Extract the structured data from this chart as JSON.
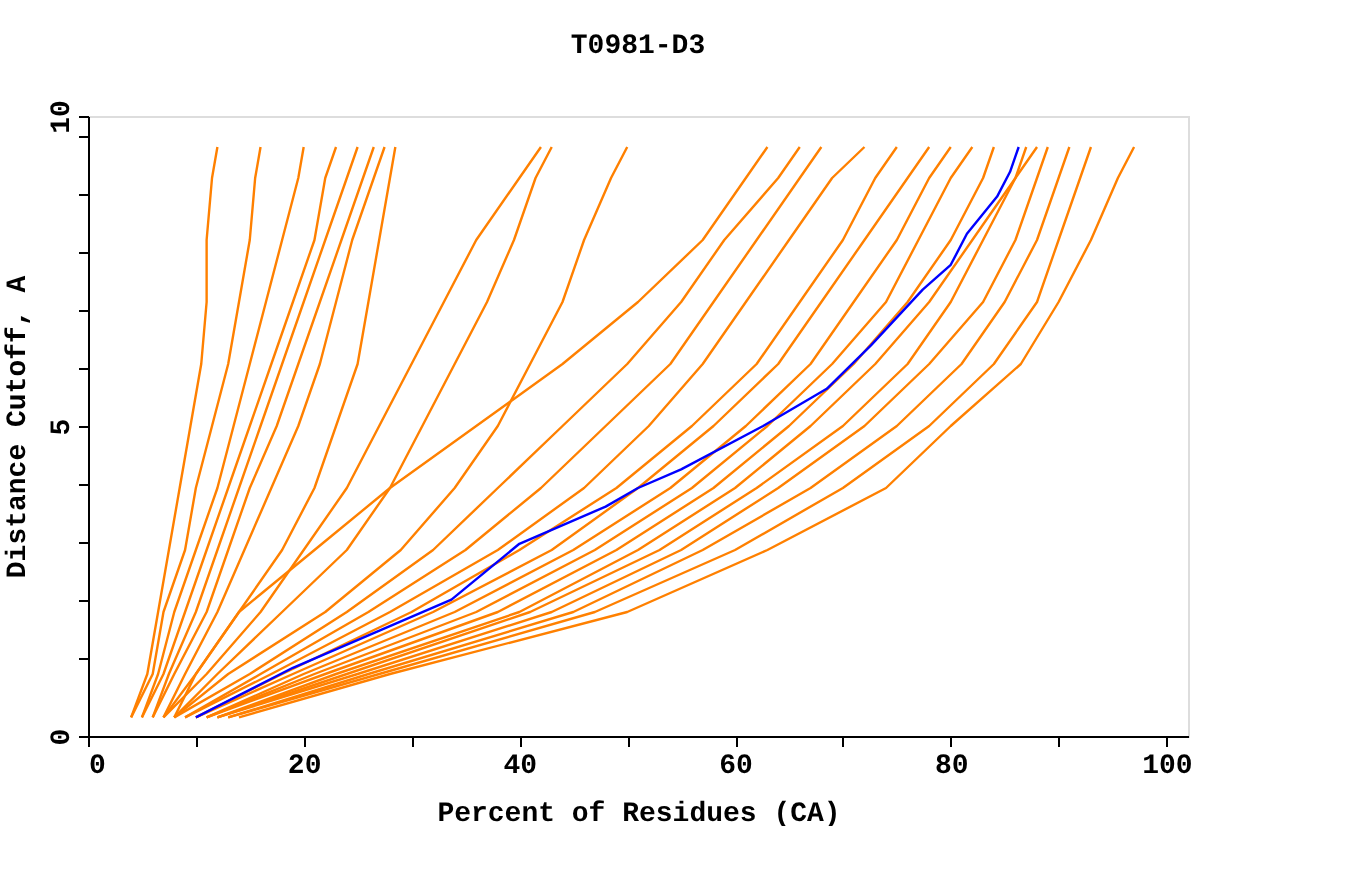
{
  "chart_data": {
    "type": "line",
    "title": "T0981-D3",
    "xlabel": "Percent of Residues (CA)",
    "ylabel": "Distance Cutoff, A",
    "xlim": [
      0,
      102
    ],
    "ylim": [
      0,
      10
    ],
    "xticks": [
      0,
      {
        "value": 10,
        "label": null
      },
      20,
      {
        "value": 30,
        "label": null
      },
      40,
      {
        "value": 50,
        "label": null
      },
      60,
      {
        "value": 70,
        "label": null
      },
      80,
      {
        "value": 90,
        "label": null
      },
      100
    ],
    "yticks": [
      0,
      {
        "value": 1.26,
        "label": null
      },
      {
        "value": 2.19,
        "label": null
      },
      {
        "value": 3.13,
        "label": null
      },
      {
        "value": 4.06,
        "label": null
      },
      5,
      {
        "value": 5.94,
        "label": null
      },
      {
        "value": 6.87,
        "label": null
      },
      {
        "value": 7.81,
        "label": null
      },
      {
        "value": 8.74,
        "label": null
      },
      {
        "value": 9.68,
        "label": null
      },
      10
    ],
    "grid": false,
    "legend": false,
    "series": [
      {
        "color": "#ff8000",
        "x": [
          4,
          5.5,
          6.5,
          7.5,
          8.5,
          9.5,
          10.5,
          11,
          11,
          11.5,
          12
        ],
        "values": [
          0.3,
          1,
          2,
          3,
          4,
          5,
          6,
          7,
          8,
          9,
          9.5
        ]
      },
      {
        "color": "#ff8000",
        "x": [
          4,
          6,
          7,
          9,
          10,
          11.5,
          13,
          14,
          15,
          15.5,
          16
        ],
        "values": [
          0.3,
          1,
          2,
          3,
          4,
          5,
          6,
          7,
          8,
          9,
          9.5
        ]
      },
      {
        "color": "#ff8000",
        "x": [
          5,
          6.5,
          8,
          10,
          12,
          13.5,
          15,
          16.5,
          18,
          19.5,
          20
        ],
        "values": [
          0.3,
          1,
          2,
          3,
          4,
          5,
          6,
          7,
          8,
          9,
          9.5
        ]
      },
      {
        "color": "#ff8000",
        "x": [
          5,
          7,
          9,
          11,
          13,
          15,
          17,
          19,
          21,
          22,
          23
        ],
        "values": [
          0.3,
          1,
          2,
          3,
          4,
          5,
          6,
          7,
          8,
          9,
          9.5
        ]
      },
      {
        "color": "#ff8000",
        "x": [
          6,
          7.5,
          10,
          12,
          14,
          16,
          18,
          20,
          22,
          24,
          25
        ],
        "values": [
          0.3,
          1,
          2,
          3,
          4,
          5,
          6,
          7,
          8,
          9,
          9.5
        ]
      },
      {
        "color": "#ff8000",
        "x": [
          6,
          8,
          11,
          13,
          15,
          17.5,
          19.5,
          21.5,
          23.5,
          25.5,
          26.5
        ],
        "values": [
          0.3,
          1,
          2,
          3,
          4,
          5,
          6,
          7,
          8,
          9,
          9.5
        ]
      },
      {
        "color": "#ff8000",
        "x": [
          7,
          9,
          12,
          14.5,
          17,
          19.5,
          21.5,
          23,
          24.5,
          26.5,
          27.5
        ],
        "values": [
          0.3,
          1,
          2,
          3,
          4,
          5,
          6,
          7,
          8,
          9,
          9.5
        ]
      },
      {
        "color": "#ff8000",
        "x": [
          7,
          10,
          14,
          18,
          21,
          23,
          25,
          26,
          27,
          28,
          28.5
        ],
        "values": [
          0.3,
          1,
          2,
          3,
          4,
          5,
          6,
          7,
          8,
          9,
          9.5
        ]
      },
      {
        "color": "#ff8000",
        "x": [
          7,
          11,
          16,
          20,
          24,
          27,
          30,
          33,
          36,
          40,
          42
        ],
        "values": [
          0.3,
          1,
          2,
          3,
          4,
          5,
          6,
          7,
          8,
          9,
          9.5
        ]
      },
      {
        "color": "#ff8000",
        "x": [
          8,
          12,
          18,
          24,
          28,
          31,
          34,
          37,
          39.5,
          41.5,
          43
        ],
        "values": [
          0.3,
          1,
          2,
          3,
          4,
          5,
          6,
          7,
          8,
          9,
          9.5
        ]
      },
      {
        "color": "#ff8000",
        "x": [
          8,
          13,
          22,
          29,
          34,
          38,
          41,
          44,
          46,
          48.5,
          50
        ],
        "values": [
          0.3,
          1,
          2,
          3,
          4,
          5,
          6,
          7,
          8,
          9,
          9.5
        ]
      },
      {
        "color": "#ff8000",
        "x": [
          8,
          10,
          14,
          21,
          28,
          36,
          44,
          51,
          57,
          61,
          63
        ],
        "values": [
          0.3,
          1,
          2,
          3,
          4,
          5,
          6,
          7,
          8,
          9,
          9.5
        ]
      },
      {
        "color": "#ff8000",
        "x": [
          8,
          15,
          24,
          32,
          38,
          44,
          50,
          55,
          59,
          64,
          66
        ],
        "values": [
          0.3,
          1,
          2,
          3,
          4,
          5,
          6,
          7,
          8,
          9,
          9.5
        ]
      },
      {
        "color": "#ff8000",
        "x": [
          9,
          16,
          26,
          35,
          42,
          48,
          54,
          58,
          62,
          66,
          68
        ],
        "values": [
          0.3,
          1,
          2,
          3,
          4,
          5,
          6,
          7,
          8,
          9,
          9.5
        ]
      },
      {
        "color": "#ff8000",
        "x": [
          9,
          17,
          28,
          38,
          46,
          52,
          57,
          61,
          65,
          69,
          72
        ],
        "values": [
          0.3,
          1,
          2,
          3,
          4,
          5,
          6,
          7,
          8,
          9,
          9.5
        ]
      },
      {
        "color": "#ff8000",
        "x": [
          10,
          18,
          30,
          40,
          49,
          56,
          62,
          66,
          70,
          73,
          75
        ],
        "values": [
          0.3,
          1,
          2,
          3,
          4,
          5,
          6,
          7,
          8,
          9,
          9.5
        ]
      },
      {
        "color": "#ff8000",
        "x": [
          10,
          19,
          32,
          43,
          51,
          58,
          64,
          68,
          72,
          76,
          78
        ],
        "values": [
          0.3,
          1,
          2,
          3,
          4,
          5,
          6,
          7,
          8,
          9,
          9.5
        ]
      },
      {
        "color": "#ff8000",
        "x": [
          11,
          20,
          34,
          45,
          54,
          61,
          67,
          71,
          75,
          78,
          80
        ],
        "values": [
          0.3,
          1,
          2,
          3,
          4,
          5,
          6,
          7,
          8,
          9,
          9.5
        ]
      },
      {
        "color": "#ff8000",
        "x": [
          11,
          21,
          36,
          47,
          56,
          63,
          69,
          74,
          77,
          80,
          82
        ],
        "values": [
          0.3,
          1,
          2,
          3,
          4,
          5,
          6,
          7,
          8,
          9,
          9.5
        ]
      },
      {
        "color": "#ff8000",
        "x": [
          11,
          22,
          38,
          49,
          58,
          65,
          71,
          76,
          80,
          83,
          84
        ],
        "values": [
          0.3,
          1,
          2,
          3,
          4,
          5,
          6,
          7,
          8,
          9,
          9.5
        ]
      },
      {
        "color": "#ff8000",
        "x": [
          12,
          23,
          40,
          51,
          60,
          67,
          73,
          78,
          82,
          86,
          87
        ],
        "values": [
          0.3,
          1,
          2,
          3,
          4,
          5,
          6,
          7,
          8,
          9,
          9.5
        ]
      },
      {
        "color": "#ff8000",
        "x": [
          12,
          24,
          41,
          53,
          62,
          70,
          76,
          80,
          83,
          86,
          88
        ],
        "values": [
          0.3,
          1,
          2,
          3,
          4,
          5,
          6,
          7,
          8,
          9,
          9.5
        ]
      },
      {
        "color": "#ff8000",
        "x": [
          12,
          25,
          43,
          55,
          64,
          72,
          78,
          83,
          86,
          88,
          89
        ],
        "values": [
          0.3,
          1,
          2,
          3,
          4,
          5,
          6,
          7,
          8,
          9,
          9.5
        ]
      },
      {
        "color": "#ff8000",
        "x": [
          13,
          26,
          45,
          57,
          67,
          75,
          81,
          85,
          88,
          90,
          91
        ],
        "values": [
          0.3,
          1,
          2,
          3,
          4,
          5,
          6,
          7,
          8,
          9,
          9.5
        ]
      },
      {
        "color": "#ff8000",
        "x": [
          13,
          27,
          47,
          60,
          70,
          78,
          84,
          88,
          90,
          92,
          93
        ],
        "values": [
          0.3,
          1,
          2,
          3,
          4,
          5,
          6,
          7,
          8,
          9,
          9.5
        ]
      },
      {
        "color": "#ff8000",
        "x": [
          14,
          28,
          50,
          63,
          74,
          80,
          86.5,
          90,
          93,
          95.5,
          97
        ],
        "values": [
          0.3,
          1,
          2,
          3,
          4,
          5,
          6,
          7,
          8,
          9,
          9.5
        ]
      },
      {
        "color": "#0000ff",
        "x": [
          10,
          19,
          33.7,
          40,
          48,
          51,
          55,
          62.6,
          68.5,
          72.6,
          77.4,
          80,
          81.5,
          84.3,
          85.5,
          86.3
        ],
        "values": [
          0.3,
          1.1,
          2.2,
          3.1,
          3.7,
          4.0,
          4.3,
          5.0,
          5.6,
          6.3,
          7.2,
          7.6,
          8.1,
          8.7,
          9.1,
          9.5
        ]
      }
    ]
  }
}
